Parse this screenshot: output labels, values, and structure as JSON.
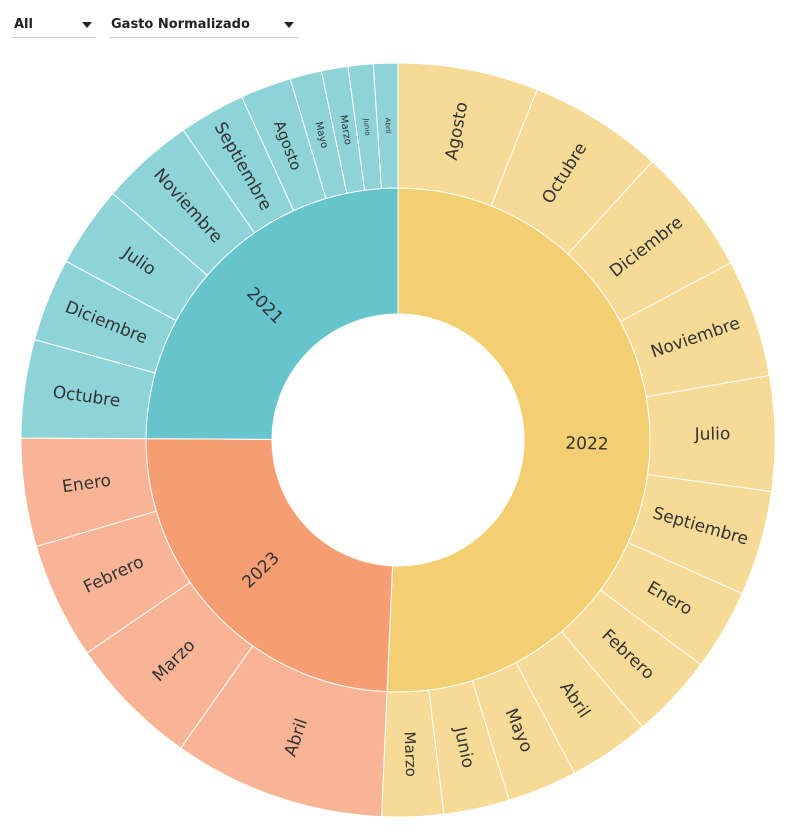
{
  "filters": {
    "year": {
      "value": "All"
    },
    "metric": {
      "value": "Gasto Normalizado"
    }
  },
  "chart_data": {
    "type": "sunburst",
    "start_angle_deg": 0,
    "direction": "clockwise",
    "years": [
      {
        "name": "2022",
        "color": "#f3ce73",
        "outer_color": "#f6da95",
        "sweep_deg": 182.5,
        "months": [
          {
            "name": "Agosto",
            "value": 23.7
          },
          {
            "name": "Octubre",
            "value": 22.7
          },
          {
            "name": "Diciembre",
            "value": 21.4
          },
          {
            "name": "Noviembre",
            "value": 19.9
          },
          {
            "name": "Julio",
            "value": 19.4
          },
          {
            "name": "Septiembre",
            "value": 17.7
          },
          {
            "name": "Enero",
            "value": 13.7
          },
          {
            "name": "Febrero",
            "value": 14.2
          },
          {
            "name": "Abril",
            "value": 13.7
          },
          {
            "name": "Mayo",
            "value": 11.8
          },
          {
            "name": "Junio",
            "value": 11.1
          },
          {
            "name": "Marzo",
            "value": 10.4
          }
        ]
      },
      {
        "name": "2023",
        "color": "#f79d74",
        "outer_color": "#f8b495",
        "sweep_deg": 87.8,
        "months": [
          {
            "name": "Abril",
            "value": 32.7
          },
          {
            "name": "Marzo",
            "value": 20.4
          },
          {
            "name": "Febrero",
            "value": 18.0
          },
          {
            "name": "Enero",
            "value": 16.7
          }
        ]
      },
      {
        "name": "2021",
        "color": "#66c4cc",
        "outer_color": "#8dd3d8",
        "sweep_deg": 89.7,
        "months": [
          {
            "name": "Octubre",
            "value": 13.3
          },
          {
            "name": "Diciembre",
            "value": 11.3
          },
          {
            "name": "Julio",
            "value": 11.0
          },
          {
            "name": "Noviembre",
            "value": 12.7
          },
          {
            "name": "Septiembre",
            "value": 9.0
          },
          {
            "name": "Agosto",
            "value": 6.9
          },
          {
            "name": "Mayo",
            "value": 4.3
          },
          {
            "name": "Marzo",
            "value": 3.6
          },
          {
            "name": "Junio",
            "value": 3.4
          },
          {
            "name": "Abril",
            "value": 3.3
          }
        ]
      }
    ]
  }
}
